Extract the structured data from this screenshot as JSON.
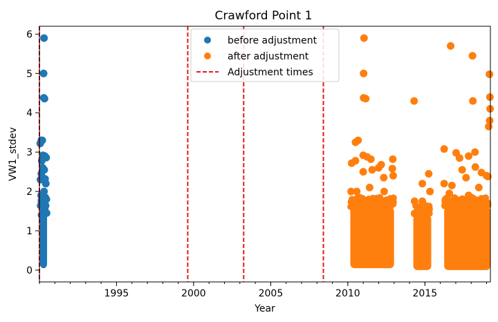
{
  "chart_data": {
    "type": "scatter",
    "title": "Crawford Point 1",
    "xlabel": "Year",
    "ylabel": "VW1_stdev",
    "xlim": [
      "1990-01-01",
      "2019-04-01"
    ],
    "ylim": [
      -0.3,
      6.2
    ],
    "x_ticks": [
      {
        "value": "1995-01-01",
        "label": "1995"
      },
      {
        "value": "2000-01-01",
        "label": "2000"
      },
      {
        "value": "2005-01-01",
        "label": "2005"
      },
      {
        "value": "2010-01-01",
        "label": "2010"
      },
      {
        "value": "2015-01-01",
        "label": "2015"
      }
    ],
    "y_ticks": [
      0,
      1,
      2,
      3,
      4,
      5,
      6
    ],
    "grid": false,
    "legend_position": "top-center",
    "series": [
      {
        "name": "before adjustment",
        "color": "#1f77b4",
        "marker": "circle",
        "points": [
          [
            "1990-04-20",
            5.9
          ],
          [
            "1990-04-10",
            5.0
          ],
          [
            "1990-04-15",
            4.38
          ],
          [
            "1990-05-01",
            4.36
          ],
          [
            "1990-02-15",
            3.3
          ],
          [
            "1990-03-10",
            3.3
          ],
          [
            "1990-01-20",
            3.22
          ],
          [
            "1990-03-25",
            2.92
          ],
          [
            "1990-05-10",
            2.9
          ],
          [
            "1990-06-10",
            2.86
          ],
          [
            "1990-02-25",
            2.78
          ],
          [
            "1990-03-20",
            2.6
          ],
          [
            "1990-04-25",
            2.55
          ],
          [
            "1990-02-15",
            2.45
          ],
          [
            "1990-03-15",
            2.35
          ],
          [
            "1990-05-15",
            2.32
          ],
          [
            "1990-06-01",
            2.2
          ],
          [
            "1990-01-25",
            2.3
          ],
          [
            "1990-04-20",
            2.0
          ],
          [
            "1990-05-20",
            1.85
          ],
          [
            "1990-06-15",
            1.8
          ],
          [
            "1990-02-10",
            1.9
          ],
          [
            "1990-03-05",
            1.7
          ],
          [
            "1990-04-05",
            1.65
          ],
          [
            "1990-05-05",
            1.55
          ],
          [
            "1990-06-20",
            1.45
          ],
          [
            "1990-02-20",
            1.4
          ],
          [
            "1990-03-28",
            1.3
          ]
        ],
        "dense_bands": [
          {
            "x_start": "1990-01-15",
            "x_end": "1990-07-01",
            "y_min": 0.05,
            "y_max": 1.6
          }
        ]
      },
      {
        "name": "after adjustment",
        "color": "#ff7f0e",
        "marker": "circle",
        "points": [
          [
            "2011-01-20",
            5.9
          ],
          [
            "2016-09-01",
            5.7
          ],
          [
            "2018-02-01",
            5.45
          ],
          [
            "2019-03-10",
            4.98
          ],
          [
            "2011-01-10",
            5.0
          ],
          [
            "2011-01-10",
            4.38
          ],
          [
            "2011-03-01",
            4.36
          ],
          [
            "2014-04-20",
            4.3
          ],
          [
            "2018-02-10",
            4.3
          ],
          [
            "2019-03-20",
            4.4
          ],
          [
            "2019-03-25",
            4.1
          ],
          [
            "2019-03-15",
            3.8
          ],
          [
            "2019-02-20",
            3.65
          ],
          [
            "2010-07-01",
            3.25
          ],
          [
            "2010-09-01",
            3.3
          ],
          [
            "2016-04-01",
            3.08
          ],
          [
            "2017-01-10",
            2.98
          ],
          [
            "2018-04-01",
            3.0
          ],
          [
            "2011-01-01",
            2.92
          ],
          [
            "2011-04-01",
            2.88
          ],
          [
            "2011-07-01",
            2.82
          ],
          [
            "2010-04-01",
            2.72
          ],
          [
            "2010-07-01",
            2.78
          ],
          [
            "2012-03-01",
            2.68
          ],
          [
            "2012-12-01",
            2.82
          ],
          [
            "2012-01-01",
            2.6
          ],
          [
            "2012-11-20",
            2.58
          ],
          [
            "2017-04-01",
            2.85
          ],
          [
            "2017-06-01",
            2.55
          ],
          [
            "2017-11-01",
            2.9
          ],
          [
            "2018-04-10",
            2.62
          ],
          [
            "2011-08-01",
            2.55
          ],
          [
            "2011-01-01",
            2.5
          ],
          [
            "2012-05-01",
            2.35
          ],
          [
            "2012-12-10",
            2.4
          ],
          [
            "2015-04-01",
            2.45
          ],
          [
            "2014-11-01",
            2.2
          ],
          [
            "2016-04-01",
            2.2
          ],
          [
            "2016-10-01",
            2.15
          ],
          [
            "2017-09-01",
            2.35
          ],
          [
            "2018-09-01",
            2.48
          ],
          [
            "2019-01-01",
            2.4
          ],
          [
            "2019-02-01",
            2.38
          ],
          [
            "2010-08-01",
            2.0
          ],
          [
            "2010-03-20",
            2.0
          ],
          [
            "2011-06-01",
            2.1
          ],
          [
            "2012-05-10",
            2.0
          ],
          [
            "2015-05-01",
            2.0
          ],
          [
            "2016-08-01",
            1.95
          ],
          [
            "2017-11-01",
            1.9
          ],
          [
            "2018-07-01",
            2.1
          ],
          [
            "2014-05-01",
            1.75
          ],
          [
            "2014-08-01",
            1.6
          ],
          [
            "2014-11-01",
            1.75
          ],
          [
            "2015-04-10",
            1.55
          ]
        ],
        "dense_bands": [
          {
            "x_start": "2010-03-01",
            "x_end": "2012-12-31",
            "y_min": 0.05,
            "y_max": 1.6
          },
          {
            "x_start": "2014-04-01",
            "x_end": "2015-05-31",
            "y_min": 0.0,
            "y_max": 1.4
          },
          {
            "x_start": "2016-04-01",
            "x_end": "2019-03-31",
            "y_min": 0.0,
            "y_max": 1.6
          }
        ]
      }
    ],
    "vertical_lines": {
      "name": "Adjustment times",
      "color": "#e41a1c",
      "style": "dashed",
      "x": [
        "1990-01-01",
        "1999-08-15",
        "2003-04-01",
        "2008-06-01"
      ]
    }
  }
}
